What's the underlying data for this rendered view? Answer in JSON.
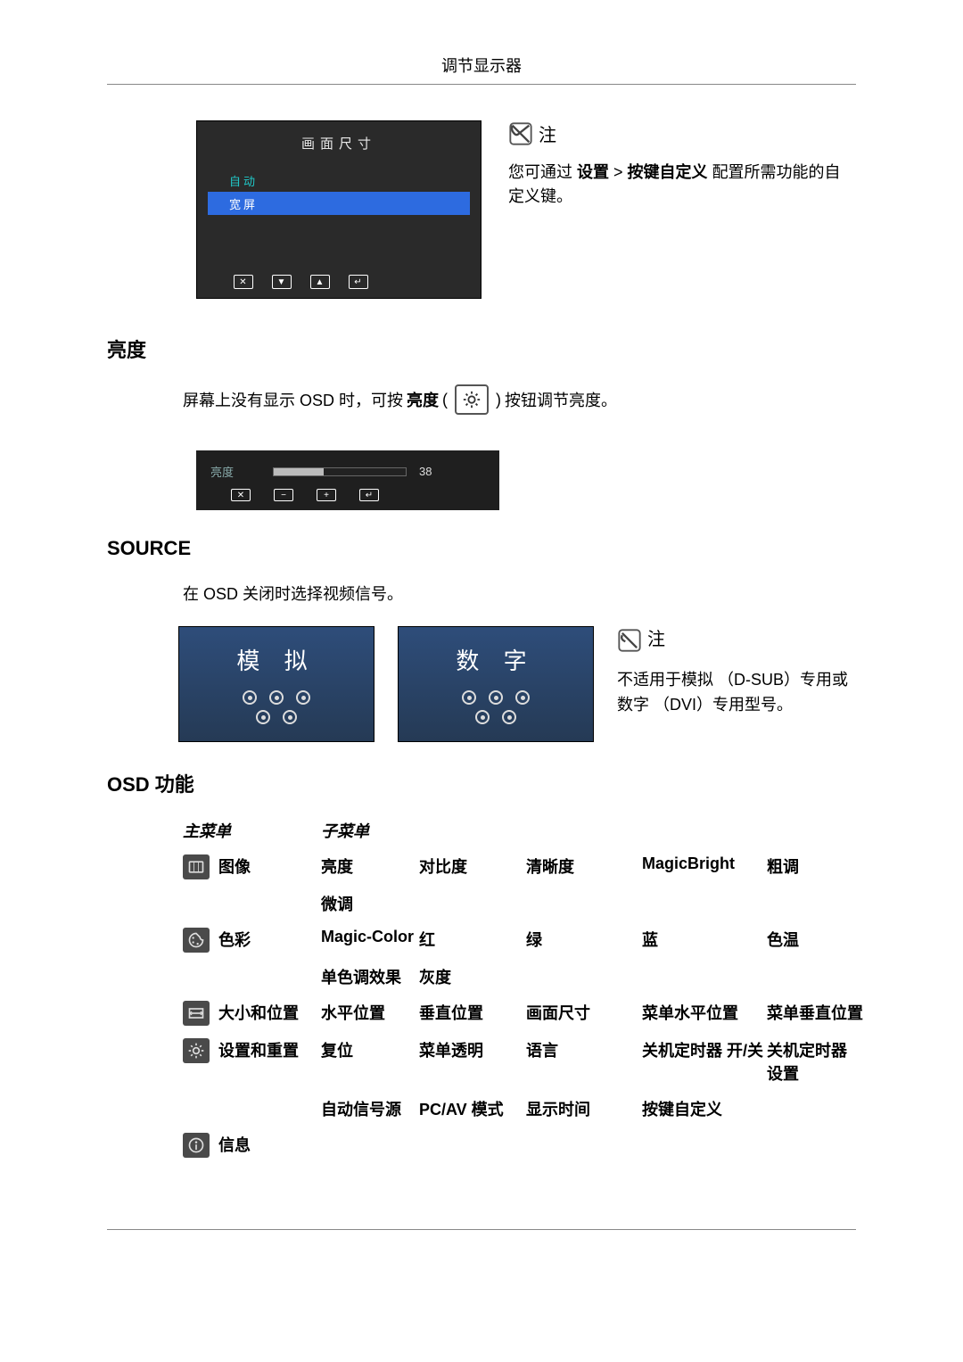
{
  "header": {
    "title": "调节显示器"
  },
  "osd1": {
    "title": "画面尺寸",
    "rows": [
      {
        "label": "自动",
        "variant": "auto"
      },
      {
        "label": "宽屏",
        "variant": "wide"
      }
    ],
    "nav_glyphs": [
      "✕",
      "▼",
      "▲",
      "↵",
      "",
      ""
    ],
    "note_label": "注",
    "note_text_prefix": "您可通过 ",
    "note_bold1": "设置",
    "note_sep": "  >  ",
    "note_bold2": "按键自定义",
    "note_text_suffix": " 配置所需功能的自定义键。"
  },
  "brightness": {
    "heading": "亮度",
    "line_pre": "屏幕上没有显示 OSD 时，可按",
    "line_bold": "亮度",
    "line_paren_open": " (",
    "line_paren_close": ") ",
    "line_post": " 按钮调节亮度。",
    "bar_label": "亮度",
    "bar_value": "38",
    "bar_fill_pct": 38,
    "nav_glyphs": [
      "✕",
      "−",
      "+",
      "↵",
      "",
      ""
    ]
  },
  "source": {
    "heading": "SOURCE",
    "body": "在 OSD 关闭时选择视频信号。",
    "card1": "模 拟",
    "card2": "数 字",
    "note_label": "注",
    "note_body": "不适用于模拟 （D-SUB）专用或数字 （DVI）专用型号。"
  },
  "osd_table": {
    "heading": "OSD 功能",
    "col_main": "主菜单",
    "col_sub": "子菜单",
    "rows": [
      {
        "icon": "image",
        "main": "图像",
        "c1": "亮度",
        "c2": "对比度",
        "c3": "清晰度",
        "c4": "MagicBright",
        "c5": "粗调",
        "c1b": "微调",
        "c2b": "",
        "c3b": "",
        "c4b": "",
        "c5b": ""
      },
      {
        "icon": "color",
        "main": "色彩",
        "c1": "Magic-Color",
        "c2": "红",
        "c3": "绿",
        "c4": "蓝",
        "c5": "色温",
        "c1b": "单色调效果",
        "c2b": "灰度",
        "c3b": "",
        "c4b": "",
        "c5b": ""
      },
      {
        "icon": "size",
        "main": "大小和位置",
        "c1": "水平位置",
        "c2": "垂直位置",
        "c3": "画面尺寸",
        "c4": "菜单水平位置",
        "c5": "菜单垂直位置",
        "c1b": "",
        "c2b": "",
        "c3b": "",
        "c4b": "",
        "c5b": ""
      },
      {
        "icon": "setup",
        "main": "设置和重置",
        "c1": "复位",
        "c2": "菜单透明",
        "c3": "语言",
        "c4": "关机定时器 开/关",
        "c5": "关机定时器 设置",
        "c1b": "自动信号源",
        "c2b": "PC/AV 模式",
        "c3b": "显示时间",
        "c4b": "按键自定义",
        "c5b": ""
      },
      {
        "icon": "info",
        "main": "信息",
        "c1": "",
        "c2": "",
        "c3": "",
        "c4": "",
        "c5": "",
        "c1b": "",
        "c2b": "",
        "c3b": "",
        "c4b": "",
        "c5b": ""
      }
    ]
  }
}
